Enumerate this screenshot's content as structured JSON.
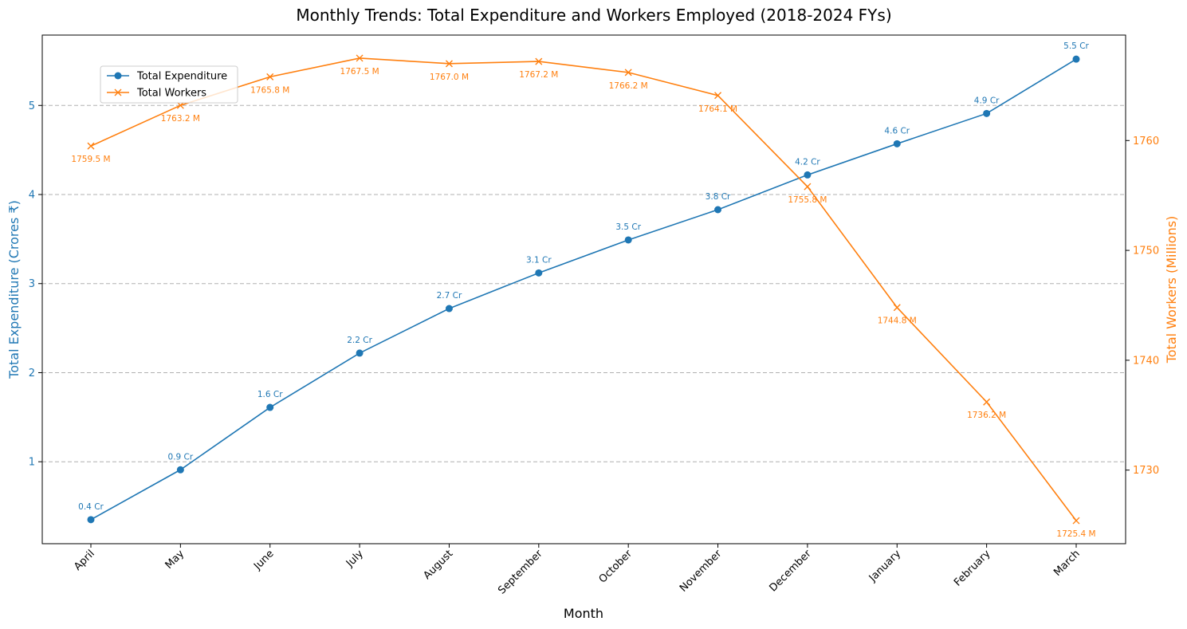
{
  "chart_data": {
    "type": "line",
    "title": "Monthly Trends: Total Expenditure and Workers Employed (2018-2024 FYs)",
    "xlabel": "Month",
    "ylabel_left": "Total Expenditure (Crores ₹)",
    "ylabel_right": "Total Workers (Millions)",
    "categories": [
      "April",
      "May",
      "June",
      "July",
      "August",
      "September",
      "October",
      "November",
      "December",
      "January",
      "February",
      "March"
    ],
    "left_axis": {
      "ylim": [
        0.08,
        5.79
      ],
      "ticks": [
        1,
        2,
        3,
        4,
        5
      ],
      "grid": true
    },
    "right_axis": {
      "ylim": [
        1723.3,
        1769.6
      ],
      "ticks": [
        1730,
        1740,
        1750,
        1760
      ]
    },
    "legend": {
      "position": "upper-left"
    },
    "series": [
      {
        "name": "Total Expenditure",
        "axis": "left",
        "color": "#1f77b4",
        "marker": "circle",
        "values": [
          0.35,
          0.91,
          1.61,
          2.22,
          2.72,
          3.12,
          3.49,
          3.83,
          4.22,
          4.57,
          4.91,
          5.52
        ],
        "labels": [
          "0.4 Cr",
          "0.9 Cr",
          "1.6 Cr",
          "2.2 Cr",
          "2.7 Cr",
          "3.1 Cr",
          "3.5 Cr",
          "3.8 Cr",
          "4.2 Cr",
          "4.6 Cr",
          "4.9 Cr",
          "5.5 Cr"
        ]
      },
      {
        "name": "Total Workers",
        "axis": "right",
        "color": "#ff7f0e",
        "marker": "x",
        "values": [
          1759.5,
          1763.2,
          1765.8,
          1767.5,
          1767.0,
          1767.2,
          1766.2,
          1764.1,
          1755.8,
          1744.8,
          1736.2,
          1725.4
        ],
        "labels": [
          "1759.5 M",
          "1763.2 M",
          "1765.8 M",
          "1767.5 M",
          "1767.0 M",
          "1767.2 M",
          "1766.2 M",
          "1764.1 M",
          "1755.8 M",
          "1744.8 M",
          "1736.2 M",
          "1725.4 M"
        ]
      }
    ]
  }
}
